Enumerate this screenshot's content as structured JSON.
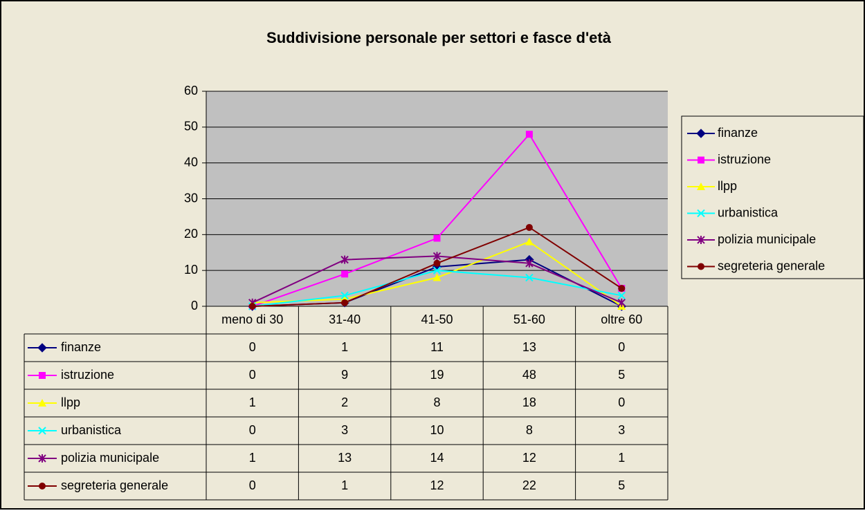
{
  "chart_data": {
    "type": "line",
    "title": "Suddivisione personale per settori e fasce d'età",
    "categories": [
      "meno di 30",
      "31-40",
      "41-50",
      "51-60",
      "oltre 60"
    ],
    "series": [
      {
        "name": "finanze",
        "color": "#000080",
        "marker": "diamond",
        "values": [
          0,
          1,
          11,
          13,
          0
        ]
      },
      {
        "name": "istruzione",
        "color": "#FF00FF",
        "marker": "square",
        "values": [
          0,
          9,
          19,
          48,
          5
        ]
      },
      {
        "name": "llpp",
        "color": "#FFFF00",
        "marker": "triangle",
        "values": [
          1,
          2,
          8,
          18,
          0
        ]
      },
      {
        "name": "urbanistica",
        "color": "#00FFFF",
        "marker": "x",
        "values": [
          0,
          3,
          10,
          8,
          3
        ]
      },
      {
        "name": "polizia municipale",
        "color": "#800080",
        "marker": "star",
        "values": [
          1,
          13,
          14,
          12,
          1
        ]
      },
      {
        "name": "segreteria generale",
        "color": "#800000",
        "marker": "circle",
        "values": [
          0,
          1,
          12,
          22,
          5
        ]
      }
    ],
    "ylim": [
      0,
      60
    ],
    "yticks": [
      0,
      10,
      20,
      30,
      40,
      50,
      60
    ],
    "grid": true,
    "legend": "right",
    "data_table": true
  }
}
